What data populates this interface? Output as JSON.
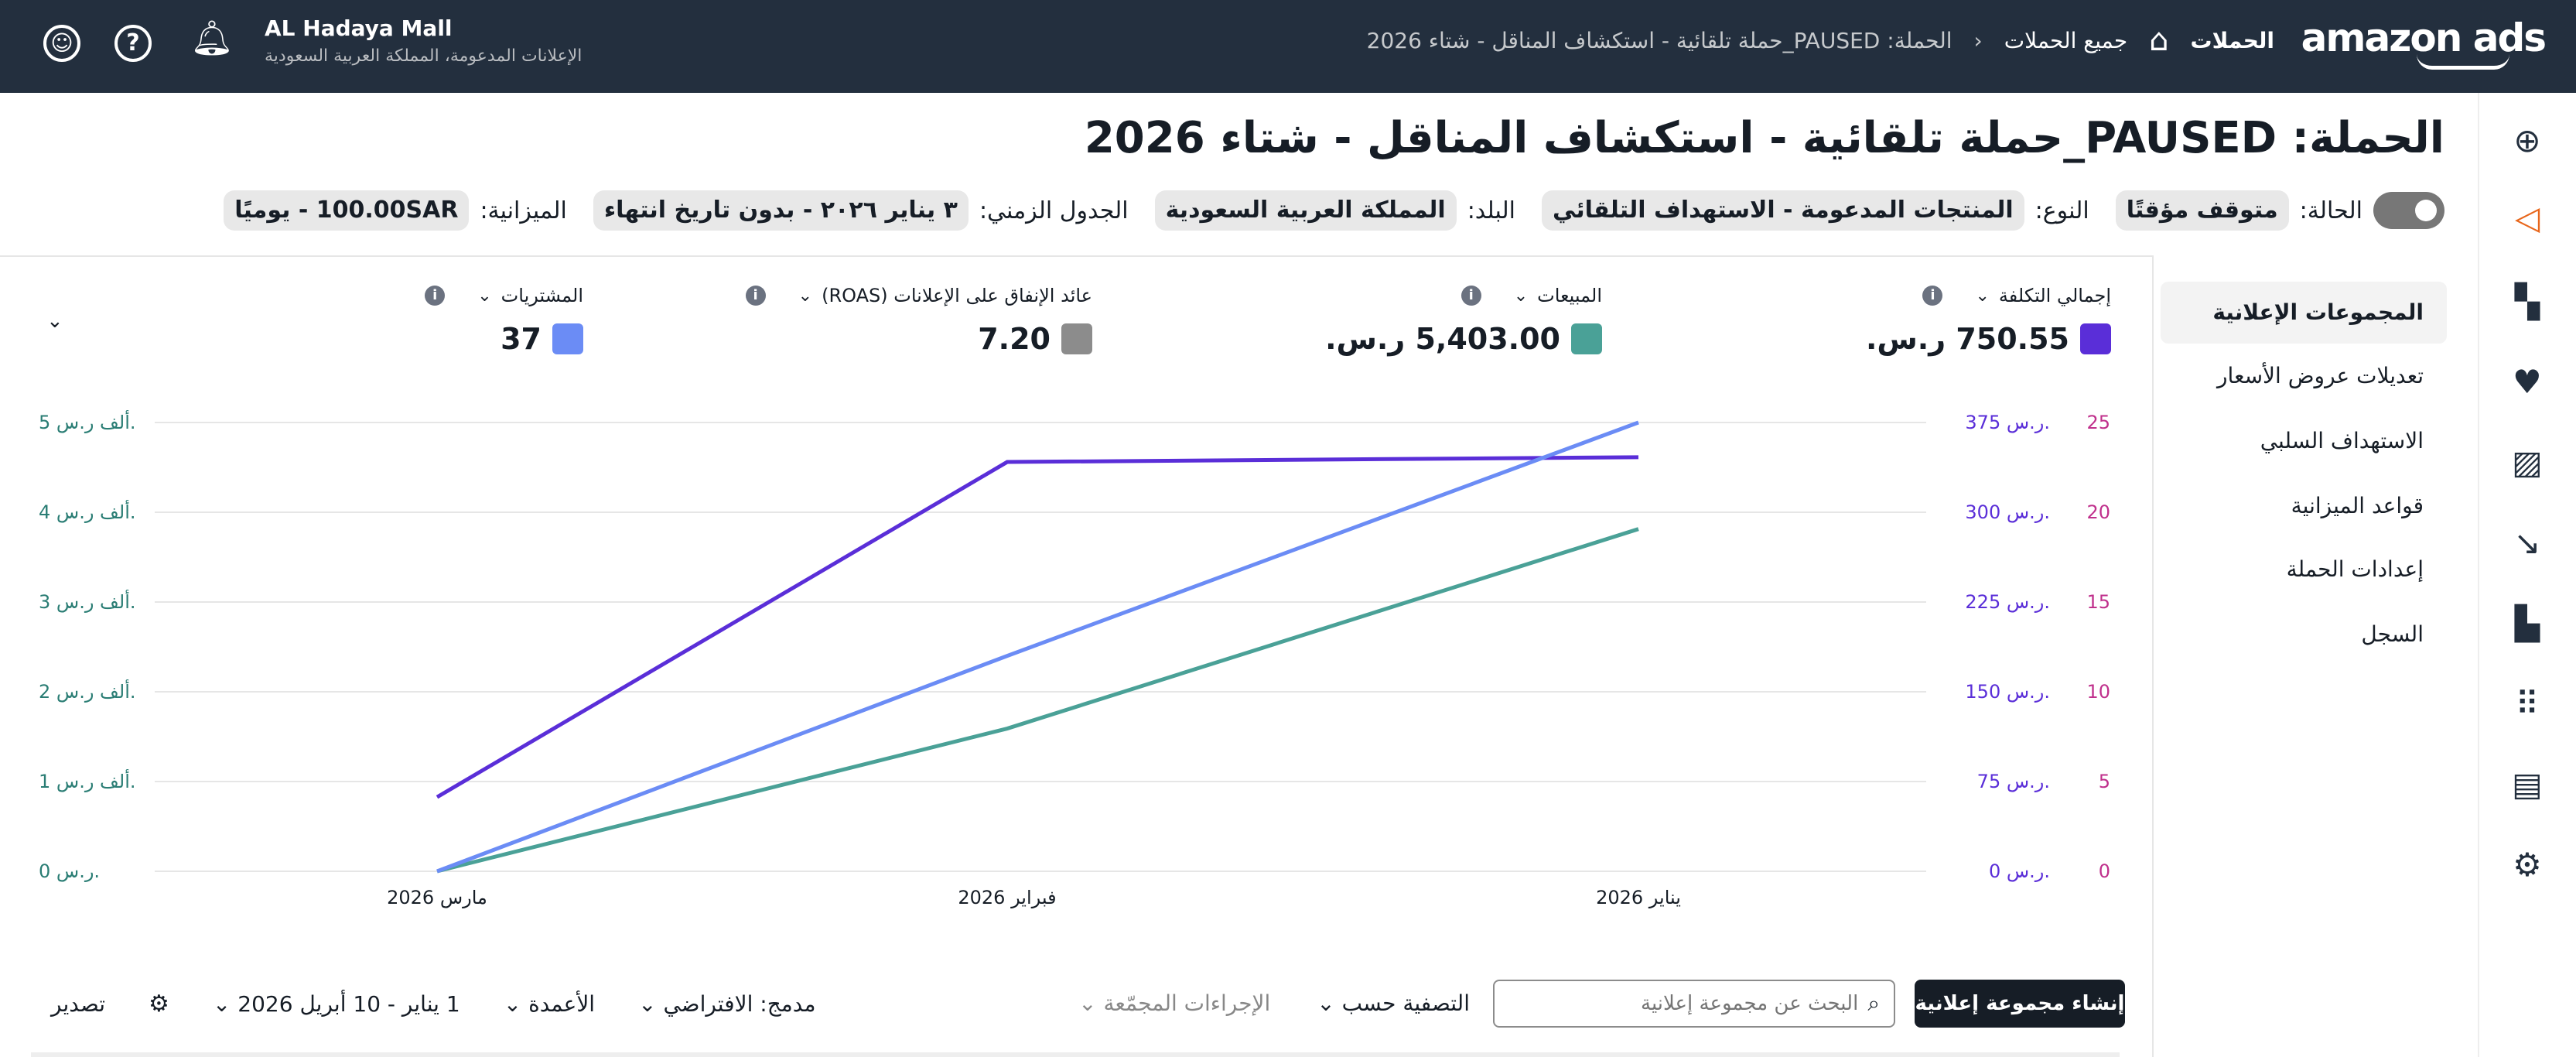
{
  "topbar": {
    "logo": "amazon ads",
    "campaigns_link": "الحملات",
    "breadcrumb": {
      "all_campaigns": "جميع الحملات",
      "current": "الحملة: PAUSED_حملة تلقائية - استكشاف المناقل - شتاء 2026"
    },
    "account_name": "AL Hadaya Mall",
    "account_sub": "الإعلانات المدعومة، المملكة العربية السعودية",
    "icons": [
      "home-icon",
      "bell-icon",
      "help-icon",
      "user-icon"
    ]
  },
  "campaign": {
    "title": "الحملة: PAUSED_حملة تلقائية - استكشاف المناقل - شتاء 2026",
    "status_label": "الحالة:",
    "status_value": "متوقف مؤقتًا",
    "status_on": false,
    "type_label": "النوع:",
    "type_value": "المنتجات المدعومة - الاستهداف التلقائي",
    "country_label": "البلد:",
    "country_value": "المملكة العربية السعودية",
    "schedule_label": "الجدول الزمني:",
    "schedule_value": "٣ يناير ٢٠٢٦ - بدون تاريخ انتهاء",
    "budget_label": "الميزانية:",
    "budget_value": "100.00SAR - يوميًا"
  },
  "subnav": {
    "items": [
      {
        "label": "المجموعات الإعلانية",
        "active": true
      },
      {
        "label": "تعديلات عروض الأسعار"
      },
      {
        "label": "الاستهداف السلبي"
      },
      {
        "label": "قواعد الميزانية"
      },
      {
        "label": "إعدادات الحملة"
      },
      {
        "label": "السجل"
      }
    ]
  },
  "rail_icons": [
    "plus-circle-icon",
    "megaphone-icon",
    "dashboard-icon",
    "shield-heart-icon",
    "image-icon",
    "trend-icon",
    "bar-chart-icon",
    "apps-grid-icon",
    "briefcase-icon",
    "gear-icon"
  ],
  "metrics": [
    {
      "label": "إجمالي التكلفة",
      "value": "750.55 ر.س.",
      "color": "#5a2ed8"
    },
    {
      "label": "المبيعات",
      "value": "5,403.00 ر.س.",
      "color": "#4aa197"
    },
    {
      "label": "عائد الإنفاق على الإعلانات (ROAS)",
      "value": "7.20",
      "color": "#8c8c8c"
    },
    {
      "label": "المشتريات",
      "value": "37",
      "color": "#6b8cf5"
    }
  ],
  "chart_data": {
    "type": "line",
    "categories": [
      "يناير 2026",
      "فبراير 2026",
      "مارس 2026"
    ],
    "x_direction": "right-to-left",
    "series": [
      {
        "name": "إجمالي التكلفة",
        "color": "#5a2ed8",
        "axis": "right-inner",
        "values": [
          346,
          342,
          62
        ]
      },
      {
        "name": "المبيعات",
        "color": "#4aa197",
        "axis": "left",
        "values": [
          3813,
          1590,
          0
        ]
      },
      {
        "name": "المشتريات",
        "color": "#6b8cf5",
        "axis": "right-outer",
        "values": [
          25,
          12,
          0
        ]
      }
    ],
    "axes": {
      "left": {
        "ticks": [
          "0 ر.س.",
          "1 ألف ر.س.",
          "2 ألف ر.س.",
          "3 ألف ر.س.",
          "4 ألف ر.س.",
          "5 ألف ر.س."
        ],
        "range": [
          0,
          5000
        ],
        "color": "#2a7d74"
      },
      "right_inner": {
        "ticks": [
          "0 ر.س.",
          "75 ر.س.",
          "150 ر.س.",
          "225 ر.س.",
          "300 ر.س.",
          "375 ر.س."
        ],
        "range": [
          0,
          375
        ],
        "color": "#5a2ed8"
      },
      "right_outer": {
        "ticks": [
          "0",
          "5",
          "10",
          "15",
          "20",
          "25"
        ],
        "range": [
          0,
          25
        ],
        "color": "#c0308c"
      }
    },
    "grid": true
  },
  "toolbar": {
    "create_button": "إنشاء مجموعة إعلانية",
    "search_placeholder": "البحث عن مجموعة إعلانية",
    "filter": "التصفية حسب",
    "bulk_actions": "الإجراءات المجمّعة",
    "merged": "مدمج: الافتراضي",
    "columns": "الأعمدة",
    "date_range": "1 يناير - 10 أبريل 2026",
    "export": "تصدير"
  }
}
